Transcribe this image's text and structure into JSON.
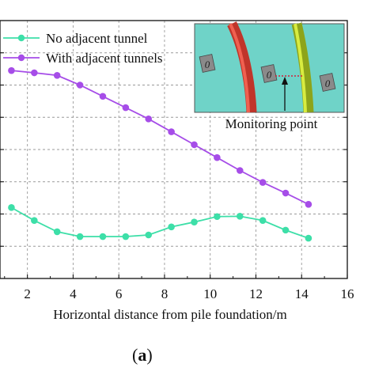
{
  "chart_data": {
    "type": "line",
    "xlabel": "Horizontal distance from pile foundation/m",
    "ylabel": "",
    "xlim": [
      0.8,
      16
    ],
    "ylim": [
      0,
      8
    ],
    "x_ticks": [
      "2",
      "4",
      "6",
      "8",
      "10",
      "12",
      "14",
      "16"
    ],
    "grid": true,
    "legend_position": "top-left",
    "series": [
      {
        "name": "No adjacent tunnel",
        "color": "#3ddfa8",
        "x": [
          1.3,
          2.3,
          3.3,
          4.3,
          5.3,
          6.3,
          7.3,
          8.3,
          9.3,
          10.3,
          11.3,
          12.3,
          13.3,
          14.3
        ],
        "y": [
          2.2,
          1.8,
          1.45,
          1.3,
          1.3,
          1.3,
          1.35,
          1.6,
          1.75,
          1.92,
          1.93,
          1.8,
          1.5,
          1.25
        ]
      },
      {
        "name": "With adjacent tunnels",
        "color": "#a64de8",
        "x": [
          1.3,
          2.3,
          3.3,
          4.3,
          5.3,
          6.3,
          7.3,
          8.3,
          9.3,
          10.3,
          11.3,
          12.3,
          13.3,
          14.3
        ],
        "y": [
          6.45,
          6.38,
          6.3,
          6.0,
          5.65,
          5.3,
          4.95,
          4.55,
          4.15,
          3.75,
          3.35,
          2.98,
          2.65,
          2.3
        ]
      }
    ]
  },
  "inset": {
    "label": "Monitoring point",
    "block_glyph": "0"
  },
  "panel": {
    "open": "(",
    "letter": "a",
    "close": ")"
  }
}
